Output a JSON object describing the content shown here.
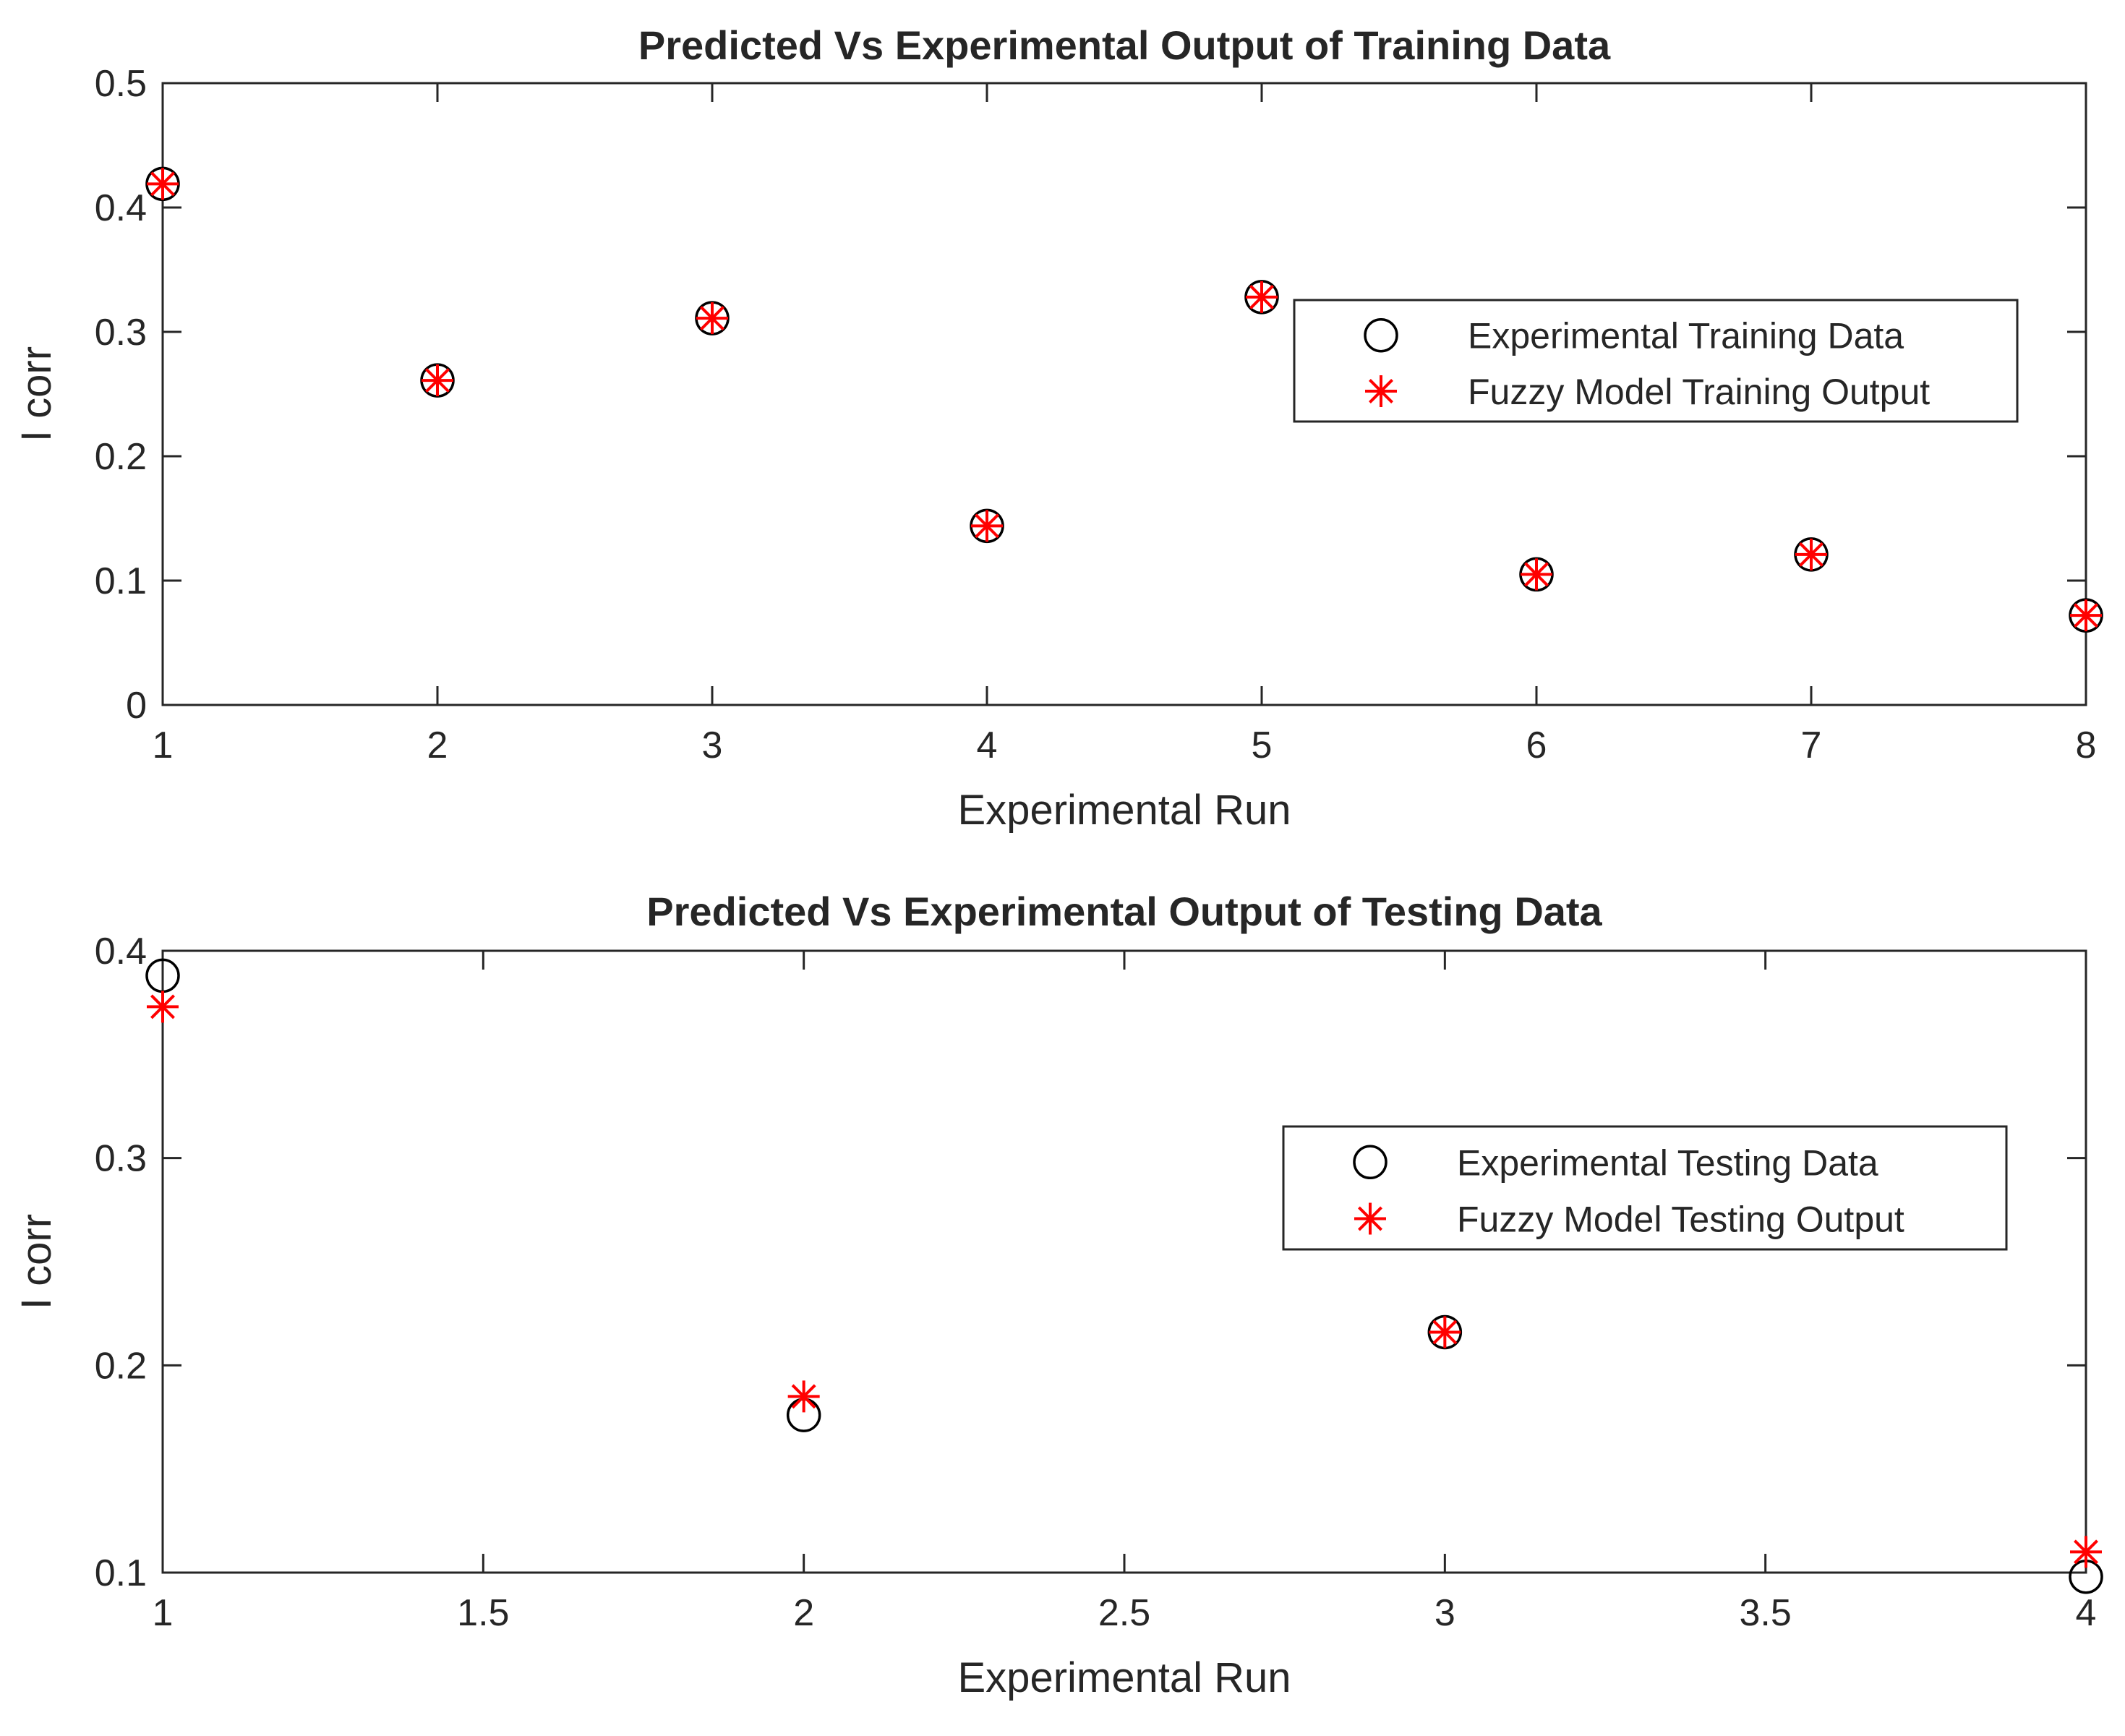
{
  "chart_data": [
    {
      "type": "scatter",
      "title": "Predicted Vs Experimental Output of Training Data",
      "xlabel": "Experimental Run",
      "ylabel": "I corr",
      "xlim": [
        1,
        8
      ],
      "ylim": [
        0,
        0.5
      ],
      "xticks": [
        1,
        2,
        3,
        4,
        5,
        6,
        7,
        8
      ],
      "yticks": [
        0,
        0.1,
        0.2,
        0.3,
        0.4,
        0.5
      ],
      "xtick_labels": [
        "1",
        "2",
        "3",
        "4",
        "5",
        "6",
        "7",
        "8"
      ],
      "ytick_labels": [
        "0",
        "0.1",
        "0.2",
        "0.3",
        "0.4",
        "0.5"
      ],
      "grid": true,
      "legend_position": "right",
      "series": [
        {
          "name": "Experimental Training Data",
          "marker": "circle",
          "color": "#000000",
          "x": [
            1,
            2,
            3,
            4,
            5,
            6,
            7,
            8
          ],
          "y": [
            0.419,
            0.261,
            0.311,
            0.144,
            0.328,
            0.105,
            0.121,
            0.072
          ]
        },
        {
          "name": "Fuzzy Model Training Output",
          "marker": "star",
          "color": "#ff0000",
          "x": [
            1,
            2,
            3,
            4,
            5,
            6,
            7,
            8
          ],
          "y": [
            0.419,
            0.261,
            0.311,
            0.144,
            0.328,
            0.105,
            0.121,
            0.072
          ]
        }
      ]
    },
    {
      "type": "scatter",
      "title": "Predicted Vs Experimental Output of Testing Data",
      "xlabel": "Experimental Run",
      "ylabel": "I corr",
      "xlim": [
        1,
        4
      ],
      "ylim": [
        0.1,
        0.4
      ],
      "xticks": [
        1,
        1.5,
        2,
        2.5,
        3,
        3.5,
        4
      ],
      "yticks": [
        0.1,
        0.2,
        0.3,
        0.4
      ],
      "xtick_labels": [
        "1",
        "1.5",
        "2",
        "2.5",
        "3",
        "3.5",
        "4"
      ],
      "ytick_labels": [
        "0.1",
        "0.2",
        "0.3",
        "0.4"
      ],
      "grid": true,
      "legend_position": "right",
      "series": [
        {
          "name": "Experimental Testing Data",
          "marker": "circle",
          "color": "#000000",
          "x": [
            1,
            2,
            3,
            4
          ],
          "y": [
            0.388,
            0.176,
            0.216,
            0.098
          ]
        },
        {
          "name": "Fuzzy Model Testing Output",
          "marker": "star",
          "color": "#ff0000",
          "x": [
            1,
            2,
            3,
            4
          ],
          "y": [
            0.373,
            0.185,
            0.216,
            0.11
          ]
        }
      ]
    }
  ]
}
